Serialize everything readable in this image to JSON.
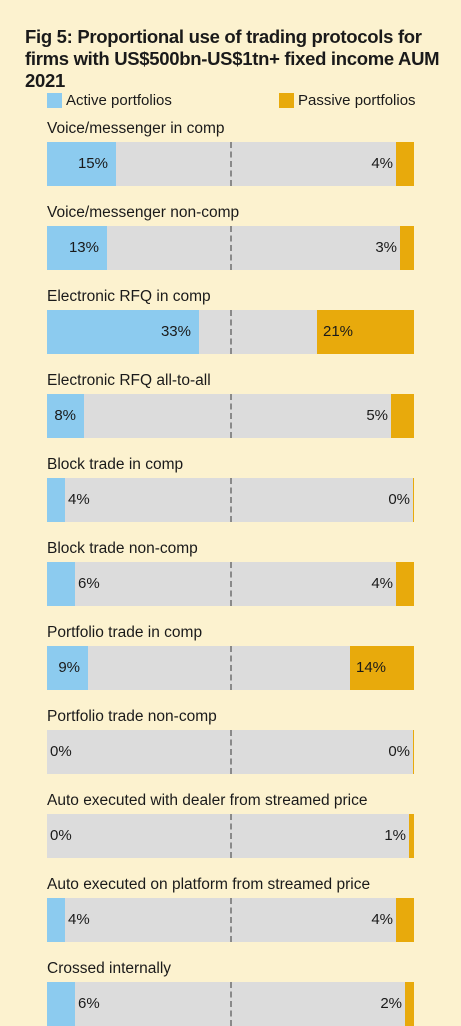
{
  "chart_data": {
    "type": "bar",
    "title": "Fig 5: Proportional use of trading protocols for firms with US$500bn-US$1tn+ fixed income AUM 2021",
    "categories": [
      "Voice/messenger in comp",
      "Voice/messenger non-comp",
      "Electronic RFQ in comp",
      "Electronic RFQ all-to-all",
      "Block trade in comp",
      "Block trade non-comp",
      "Portfolio trade in comp",
      "Portfolio trade non-comp",
      "Auto executed with dealer from streamed price",
      "Auto executed on platform from streamed price",
      "Crossed internally"
    ],
    "series": [
      {
        "name": "Active portfolios",
        "color": "#8ccbef",
        "values": [
          15,
          13,
          33,
          8,
          4,
          6,
          9,
          0,
          0,
          4,
          6
        ],
        "labels": [
          "15%",
          "13%",
          "33%",
          "8%",
          "4%",
          "6%",
          "9%",
          "0%",
          "0%",
          "4%",
          "6%"
        ]
      },
      {
        "name": "Passive portfolios",
        "color": "#e8aa0c",
        "values": [
          4,
          3,
          21,
          5,
          0,
          4,
          14,
          0,
          1,
          4,
          2
        ],
        "labels": [
          "4%",
          "3%",
          "21%",
          "5%",
          "0%",
          "4%",
          "14%",
          "0%",
          "1%",
          "4%",
          "2%"
        ]
      }
    ],
    "legend": "top",
    "track_color": "#dcdcdc"
  }
}
